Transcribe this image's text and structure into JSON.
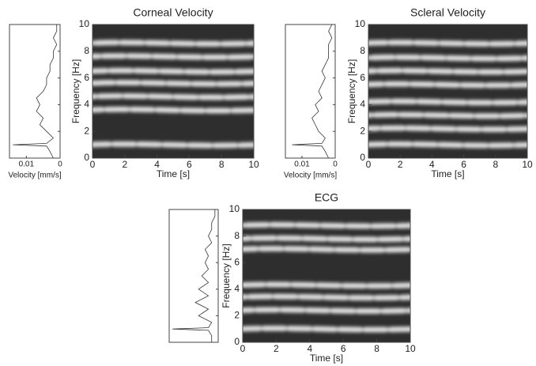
{
  "chart_data": [
    {
      "type": "spectrogram",
      "title": "Corneal Velocity",
      "xlabel": "Time [s]",
      "ylabel": "Frequency [Hz]",
      "xlim": [
        0,
        10
      ],
      "ylim": [
        0,
        10
      ],
      "xticks": [
        0,
        2,
        4,
        6,
        8,
        10
      ],
      "yticks": [
        0,
        2,
        4,
        6,
        8,
        10
      ],
      "ridges": [
        1,
        3.6,
        4.6,
        5.6,
        6.5,
        7.6,
        8.6
      ],
      "spectrum": {
        "xlabel": "Velocity [mm/s]",
        "xlim": [
          0.015,
          0
        ],
        "xticks": [
          0.01,
          0
        ],
        "frequency": [
          0,
          0.5,
          0.9,
          1,
          1.1,
          1.5,
          2,
          2.5,
          3,
          3.5,
          4,
          4.5,
          5,
          5.5,
          6,
          6.5,
          7,
          7.5,
          8,
          8.5,
          9,
          9.5,
          10
        ],
        "values": [
          0.002,
          0.003,
          0.004,
          0.014,
          0.004,
          0.002,
          0.004,
          0.006,
          0.005,
          0.007,
          0.006,
          0.007,
          0.005,
          0.004,
          0.004,
          0.003,
          0.003,
          0.002,
          0.002,
          0.001,
          0.002,
          0.001,
          0.001
        ]
      }
    },
    {
      "type": "spectrogram",
      "title": "Scleral Velocity",
      "xlabel": "Time [s]",
      "ylabel": "Frequency [Hz]",
      "xlim": [
        0,
        10
      ],
      "ylim": [
        0,
        10
      ],
      "xticks": [
        0,
        2,
        4,
        6,
        8,
        10
      ],
      "yticks": [
        0,
        2,
        4,
        6,
        8,
        10
      ],
      "ridges": [
        1,
        2.2,
        3.2,
        4.2,
        5.5,
        6.5,
        7.5,
        8.6
      ],
      "spectrum": {
        "xlabel": "Velocity [mm/s]",
        "xlim": [
          0.015,
          0
        ],
        "xticks": [
          0.01,
          0
        ],
        "frequency": [
          0,
          0.5,
          0.9,
          1,
          1.1,
          1.5,
          2,
          2.5,
          3,
          3.5,
          4,
          4.5,
          5,
          5.5,
          6,
          6.5,
          7,
          7.5,
          8,
          8.5,
          9,
          9.5,
          10
        ],
        "values": [
          0.002,
          0.003,
          0.004,
          0.013,
          0.004,
          0.003,
          0.005,
          0.006,
          0.007,
          0.005,
          0.006,
          0.004,
          0.005,
          0.004,
          0.003,
          0.004,
          0.003,
          0.002,
          0.002,
          0.002,
          0.001,
          0.002,
          0.001
        ]
      }
    },
    {
      "type": "spectrogram",
      "title": "ECG",
      "xlabel": "Time [s]",
      "ylabel": "Frequency [Hz]",
      "xlim": [
        0,
        10
      ],
      "ylim": [
        0,
        10
      ],
      "xticks": [
        0,
        2,
        4,
        6,
        8,
        10
      ],
      "yticks": [
        0,
        2,
        4,
        6,
        8,
        10
      ],
      "ridges": [
        1,
        2.4,
        3.4,
        4.3,
        7,
        7.8,
        8.8
      ],
      "spectrum": {
        "xlim": [
          0.015,
          0
        ],
        "frequency": [
          0,
          0.5,
          0.9,
          1,
          1.1,
          1.5,
          2,
          2.5,
          3,
          3.5,
          4,
          4.5,
          5,
          5.5,
          6,
          6.5,
          7,
          7.5,
          8,
          8.5,
          9,
          9.5,
          10
        ],
        "values": [
          0.002,
          0.002,
          0.003,
          0.014,
          0.003,
          0.002,
          0.006,
          0.003,
          0.007,
          0.003,
          0.006,
          0.003,
          0.005,
          0.003,
          0.004,
          0.003,
          0.004,
          0.002,
          0.003,
          0.002,
          0.002,
          0.001,
          0.001
        ]
      }
    }
  ]
}
